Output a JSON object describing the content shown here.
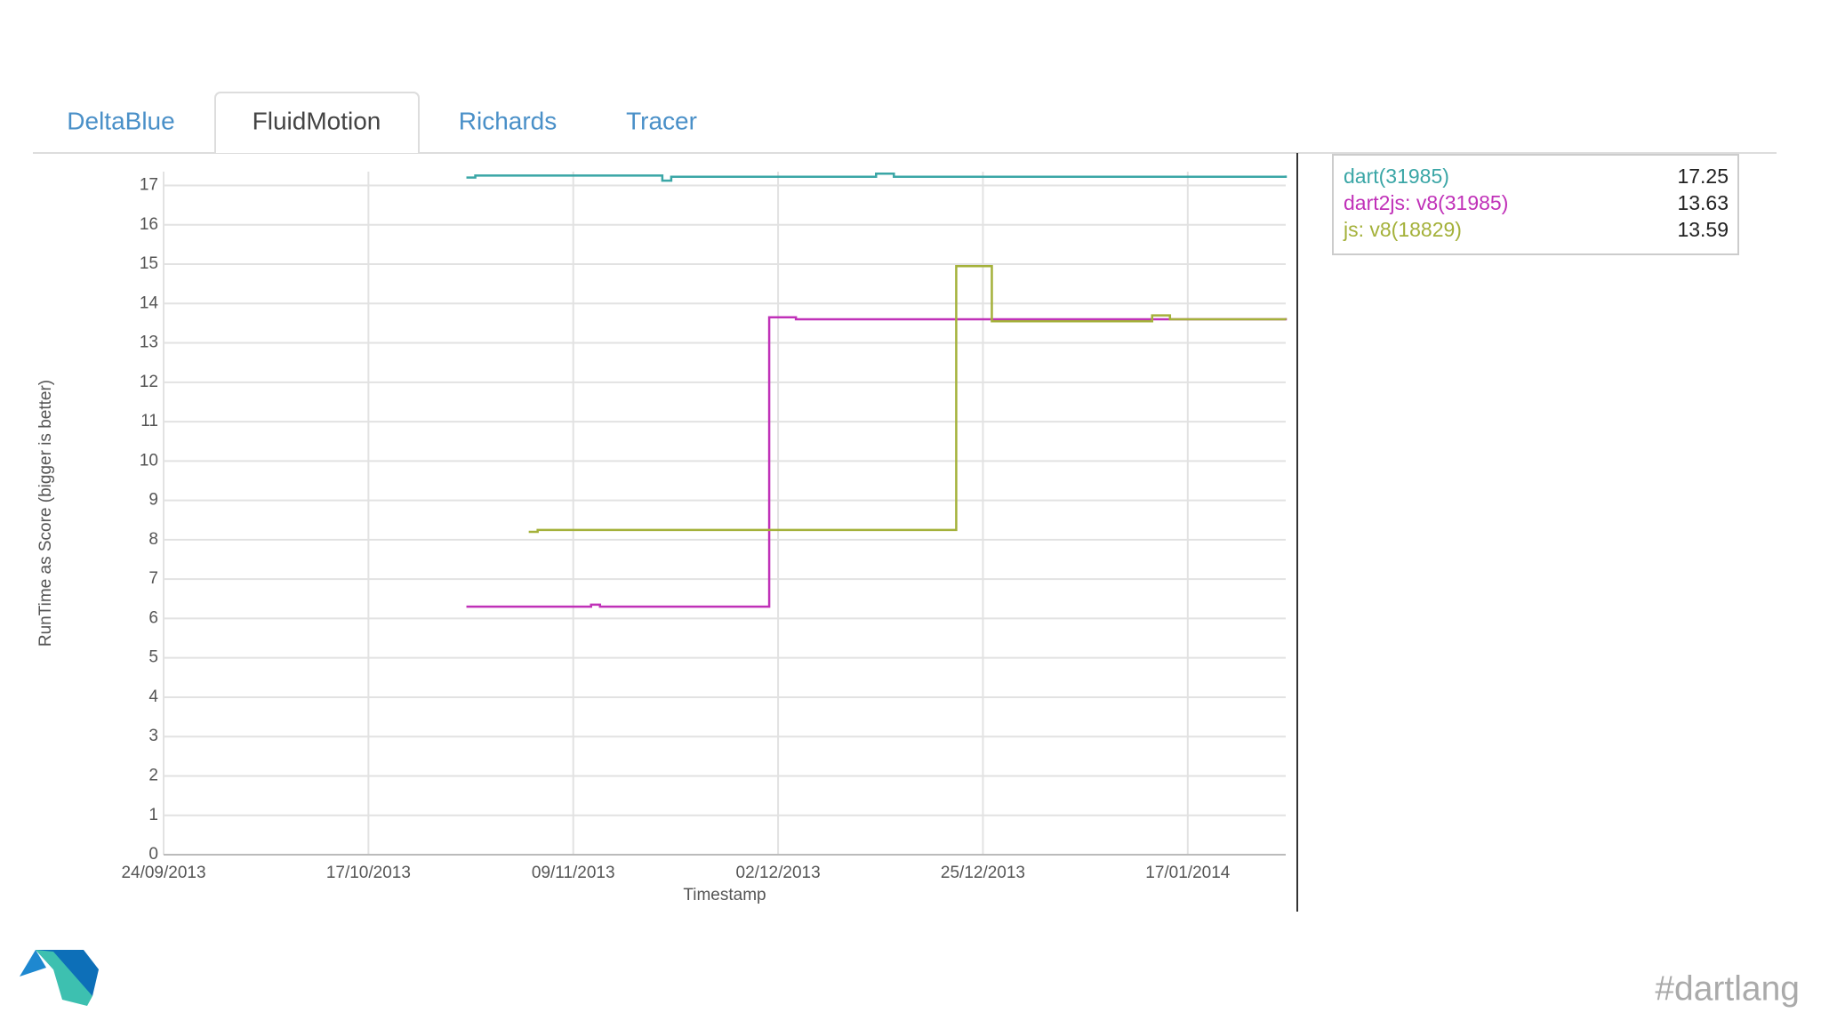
{
  "tabs": [
    "DeltaBlue",
    "FluidMotion",
    "Richards",
    "Tracer"
  ],
  "active_tab": "FluidMotion",
  "chart_data": {
    "type": "step-line",
    "x_label": "Timestamp",
    "y_label": "RunTime as Score (bigger is better)",
    "xlim": [
      "24/09/2013",
      "28/01/2014"
    ],
    "xticks": [
      "24/09/2013",
      "17/10/2013",
      "09/11/2013",
      "02/12/2013",
      "25/12/2013",
      "17/01/2014"
    ],
    "ylim": [
      0,
      17.35
    ],
    "yticks": [
      0,
      1,
      2,
      3,
      4,
      5,
      6,
      7,
      8,
      9,
      10,
      11,
      12,
      13,
      14,
      15,
      16,
      17
    ],
    "grid": true,
    "series": [
      {
        "name": "dart(31985)",
        "color": "#3aa6a6",
        "current": 17.25,
        "x": [
          "28/10/2013",
          "29/10/2013",
          "19/11/2013",
          "20/11/2013",
          "13/12/2013",
          "15/12/2013",
          "28/01/2014"
        ],
        "values": [
          17.2,
          17.25,
          17.12,
          17.22,
          17.3,
          17.22,
          17.25
        ]
      },
      {
        "name": "dart2js: v8(31985)",
        "color": "#c031b8",
        "current": 13.63,
        "x": [
          "28/10/2013",
          "11/11/2013",
          "12/11/2013",
          "01/12/2013",
          "04/12/2013",
          "28/01/2014"
        ],
        "values": [
          6.3,
          6.35,
          6.3,
          13.65,
          13.6,
          13.63
        ]
      },
      {
        "name": "js: v8(18829)",
        "color": "#a4b13a",
        "current": 13.59,
        "x": [
          "04/11/2013",
          "05/11/2013",
          "22/12/2013",
          "26/12/2013",
          "13/01/2014",
          "15/01/2014",
          "28/01/2014"
        ],
        "values": [
          8.2,
          8.25,
          14.95,
          13.55,
          13.7,
          13.6,
          13.59
        ]
      }
    ]
  },
  "footer": "#dartlang"
}
